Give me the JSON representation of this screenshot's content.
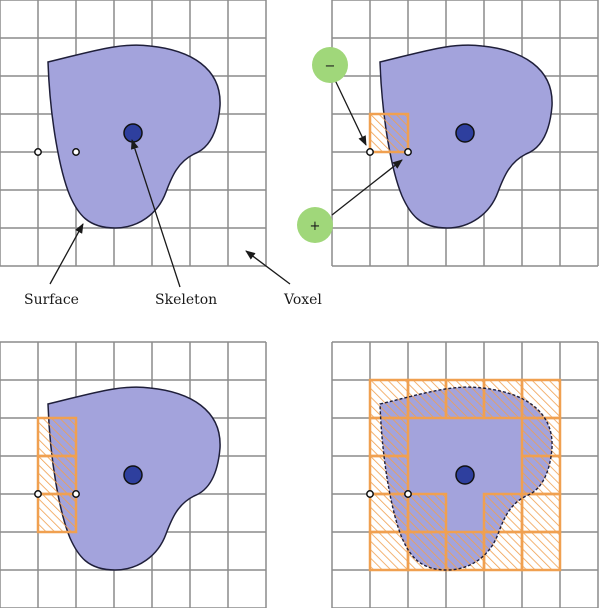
{
  "labels": {
    "surface": "Surface",
    "skeleton": "Skeleton",
    "voxel": "Voxel"
  },
  "signs": {
    "minus": "−",
    "plus": "+"
  },
  "colors": {
    "grid": "#8c8c8c",
    "blob_fill": "#a3a3dc",
    "blob_stroke": "#1f1f3a",
    "skeleton": "#2e3f9e",
    "sign_fill": "#a0d77a",
    "voxel_highlight": "#f0a050"
  },
  "panels": [
    {
      "name": "panel-top-left",
      "highlighted_cells": 0,
      "dashed_surface": false
    },
    {
      "name": "panel-top-right",
      "highlighted_cells": 1,
      "dashed_surface": false
    },
    {
      "name": "panel-bottom-left",
      "highlighted_cells": 3,
      "dashed_surface": false
    },
    {
      "name": "panel-bottom-right",
      "highlighted_cells": 23,
      "dashed_surface": true
    }
  ]
}
